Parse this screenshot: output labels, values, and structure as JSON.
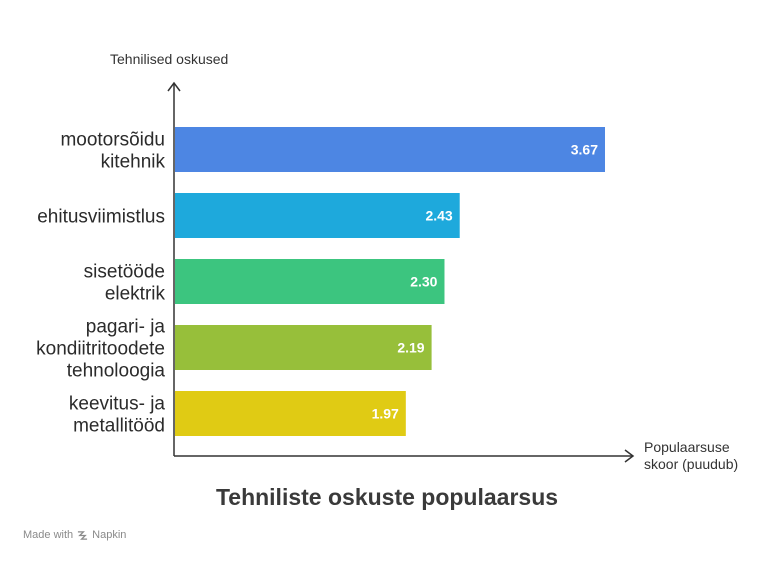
{
  "chart_data": {
    "type": "bar",
    "orientation": "horizontal",
    "title": "Tehniliste oskuste populaarsus",
    "ylabel": "Tehnilised oskused",
    "xlabel": "Populaarsuse skoor (puudub)",
    "xlabel_lines": [
      "Populaarsuse",
      "skoor (puudub)"
    ],
    "categories": [
      [
        "mootorsõidu",
        "kitehnik"
      ],
      [
        "ehitusviimistlus"
      ],
      [
        "sisetööde",
        "elektrik"
      ],
      [
        "pagari- ja",
        "kondiitritoodete",
        "tehnoloogia"
      ],
      [
        "keevitus- ja",
        "metallitööd"
      ]
    ],
    "values": [
      3.67,
      2.43,
      2.3,
      2.19,
      1.97
    ],
    "value_labels": [
      "3.67",
      "2.43",
      "2.30",
      "2.19",
      "1.97"
    ],
    "colors": [
      "#4d86e3",
      "#1ea9dc",
      "#3cc57f",
      "#97bf3a",
      "#e0cb14"
    ],
    "xlim": [
      0,
      3.67
    ],
    "grid": false,
    "legend": "none"
  },
  "footer": {
    "made_with": "Made with",
    "brand": "Napkin",
    "icon": "napkin-logo-icon"
  }
}
